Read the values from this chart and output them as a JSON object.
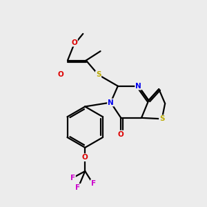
{
  "background_color": "#ececec",
  "bond_color": "#000000",
  "atom_colors": {
    "O": "#dd0000",
    "N": "#0000ee",
    "S": "#bbaa00",
    "F": "#cc00cc",
    "C": "#000000"
  },
  "figsize": [
    3.0,
    3.0
  ],
  "dpi": 100
}
